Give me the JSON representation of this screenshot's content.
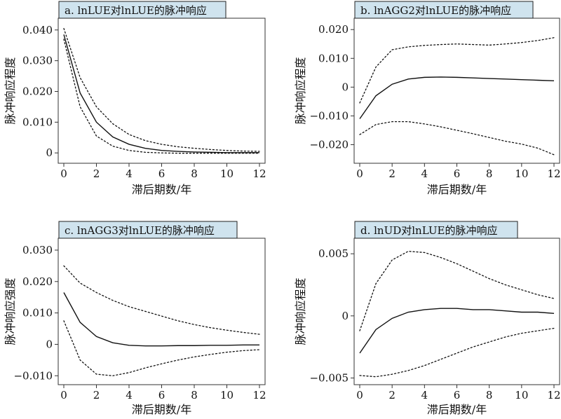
{
  "chart_data": [
    {
      "type": "line",
      "title": "a. lnLUE对lnLUE的脉冲响应",
      "xlabel": "滞后期数/年",
      "ylabel": "脉冲响应程度",
      "xlim": [
        0,
        12
      ],
      "ylim": [
        -0.002,
        0.042
      ],
      "xticks": [
        0,
        2,
        4,
        6,
        8,
        10,
        12
      ],
      "xtick_labels": [
        "0",
        "2",
        "4",
        "6",
        "8",
        "10",
        "12"
      ],
      "yticks": [
        0,
        0.01,
        0.02,
        0.03,
        0.04
      ],
      "ytick_labels": [
        "0",
        "0.010",
        "0.020",
        "0.030",
        "0.040"
      ],
      "x": [
        0,
        1,
        2,
        3,
        4,
        5,
        6,
        7,
        8,
        9,
        10,
        11,
        12
      ],
      "series": [
        {
          "style": "solid",
          "values": [
            0.0385,
            0.0195,
            0.01,
            0.0052,
            0.0028,
            0.0015,
            0.0008,
            0.0005,
            0.0003,
            0.0002,
            0.0001,
            0.0001,
            0.0001
          ]
        },
        {
          "style": "dotted",
          "values": [
            0.0405,
            0.0245,
            0.015,
            0.0095,
            0.006,
            0.004,
            0.0028,
            0.002,
            0.0015,
            0.0011,
            0.0008,
            0.0006,
            0.0005
          ]
        },
        {
          "style": "dotted",
          "values": [
            0.037,
            0.015,
            0.0055,
            0.0022,
            0.0008,
            0.0002,
            0.0,
            -0.0001,
            -0.0001,
            -0.0001,
            -0.0001,
            -0.0001,
            -0.0001
          ]
        }
      ],
      "grid": false
    },
    {
      "type": "line",
      "title": "b. lnAGG2对lnLUE的脉冲响应",
      "xlabel": "滞后期数/年",
      "ylabel": "脉冲响应程度",
      "xlim": [
        0,
        12
      ],
      "ylim": [
        -0.025,
        0.022
      ],
      "xticks": [
        0,
        2,
        4,
        6,
        8,
        10,
        12
      ],
      "xtick_labels": [
        "0",
        "2",
        "4",
        "6",
        "8",
        "10",
        "12"
      ],
      "yticks": [
        -0.02,
        -0.01,
        0,
        0.01,
        0.02
      ],
      "ytick_labels": [
        "−0.020",
        "−0.010",
        "0",
        "0.010",
        "0.020"
      ],
      "x": [
        0,
        1,
        2,
        3,
        4,
        5,
        6,
        7,
        8,
        9,
        10,
        11,
        12
      ],
      "series": [
        {
          "style": "solid",
          "values": [
            -0.011,
            -0.003,
            0.001,
            0.0028,
            0.0034,
            0.0035,
            0.0034,
            0.0032,
            0.003,
            0.0028,
            0.0026,
            0.0024,
            0.0022
          ]
        },
        {
          "style": "dotted",
          "values": [
            -0.0055,
            0.007,
            0.013,
            0.014,
            0.0145,
            0.0148,
            0.015,
            0.0148,
            0.0146,
            0.015,
            0.0155,
            0.0162,
            0.0172
          ]
        },
        {
          "style": "dotted",
          "values": [
            -0.0165,
            -0.013,
            -0.012,
            -0.012,
            -0.0128,
            -0.0138,
            -0.015,
            -0.0162,
            -0.0175,
            -0.0188,
            -0.0198,
            -0.0212,
            -0.0235
          ]
        }
      ],
      "grid": false
    },
    {
      "type": "line",
      "title": "c. lnAGG3对lnLUE的脉冲响应",
      "xlabel": "滞后期数/年",
      "ylabel": "脉冲响应强度",
      "xlim": [
        0,
        12
      ],
      "ylim": [
        -0.0115,
        0.032
      ],
      "xticks": [
        0,
        2,
        4,
        6,
        8,
        10,
        12
      ],
      "xtick_labels": [
        "0",
        "2",
        "4",
        "6",
        "8",
        "10",
        "12"
      ],
      "yticks": [
        -0.01,
        0,
        0.01,
        0.02,
        0.03
      ],
      "ytick_labels": [
        "−0.010",
        "0",
        "0.010",
        "0.020",
        "0.030"
      ],
      "x": [
        0,
        1,
        2,
        3,
        4,
        5,
        6,
        7,
        8,
        9,
        10,
        11,
        12
      ],
      "series": [
        {
          "style": "solid",
          "values": [
            0.0165,
            0.007,
            0.0025,
            0.0005,
            -0.0003,
            -0.0005,
            -0.0005,
            -0.0004,
            -0.0004,
            -0.0003,
            -0.0003,
            -0.0002,
            -0.0002
          ]
        },
        {
          "style": "dotted",
          "values": [
            0.025,
            0.0195,
            0.0165,
            0.014,
            0.012,
            0.0105,
            0.009,
            0.0075,
            0.0063,
            0.0053,
            0.0045,
            0.0038,
            0.0032
          ]
        },
        {
          "style": "dotted",
          "values": [
            0.0075,
            -0.005,
            -0.0095,
            -0.01,
            -0.009,
            -0.0075,
            -0.0062,
            -0.005,
            -0.004,
            -0.0032,
            -0.0025,
            -0.002,
            -0.0017
          ]
        }
      ],
      "grid": false
    },
    {
      "type": "line",
      "title": "d. lnUD对lnLUE的脉冲响应",
      "xlabel": "滞后期数/年",
      "ylabel": "脉冲响应程度",
      "xlim": [
        0,
        12
      ],
      "ylim": [
        -0.0052,
        0.0058
      ],
      "xticks": [
        0,
        2,
        4,
        6,
        8,
        10,
        12
      ],
      "xtick_labels": [
        "0",
        "2",
        "4",
        "6",
        "8",
        "10",
        "12"
      ],
      "yticks": [
        -0.005,
        0,
        0.005
      ],
      "ytick_labels": [
        "−0.005",
        "0",
        "0.005"
      ],
      "x": [
        0,
        1,
        2,
        3,
        4,
        5,
        6,
        7,
        8,
        9,
        10,
        11,
        12
      ],
      "series": [
        {
          "style": "solid",
          "values": [
            -0.003,
            -0.0011,
            -0.0002,
            0.0003,
            0.0005,
            0.0006,
            0.0006,
            0.0005,
            0.0005,
            0.0004,
            0.0003,
            0.0003,
            0.0002
          ]
        },
        {
          "style": "dotted",
          "values": [
            -0.0012,
            0.0026,
            0.0045,
            0.0052,
            0.0051,
            0.0047,
            0.0042,
            0.0036,
            0.003,
            0.0025,
            0.0021,
            0.0017,
            0.0014
          ]
        },
        {
          "style": "dotted",
          "values": [
            -0.0048,
            -0.0049,
            -0.0047,
            -0.0044,
            -0.004,
            -0.0035,
            -0.003,
            -0.0025,
            -0.0021,
            -0.0017,
            -0.0014,
            -0.0012,
            -0.001
          ]
        }
      ],
      "grid": false
    }
  ],
  "style": {
    "title_bg": "#cfe3ee",
    "line_color": "#111111",
    "axis_color": "#333333"
  }
}
